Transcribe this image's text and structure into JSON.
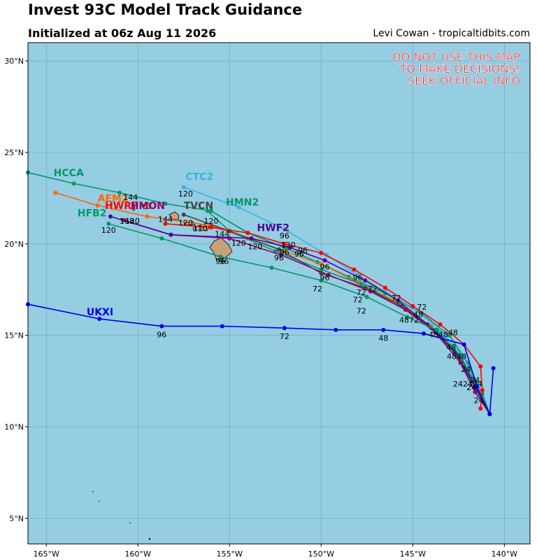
{
  "header": {
    "title": "Invest 93C Model Track Guidance",
    "subtitle": "Initialized at 06z Aug 11 2026",
    "credit": "Levi Cowan - tropicaltidbits.com"
  },
  "warning": [
    "DO NOT USE THIS MAP",
    "TO MAKE DECISIONS!",
    "SEEK OFFICIAL INFO"
  ],
  "colors": {
    "ocean": "#95cde3",
    "land": "#c8a07a",
    "grid": "#5a8aa0",
    "warning": "#ff0000"
  },
  "map_extent": {
    "lon_min": -166,
    "lon_max": -138.6,
    "lat_min": 3.6,
    "lat_max": 31
  },
  "axes": {
    "lon_ticks": [
      {
        "value": -165,
        "label": "165°W"
      },
      {
        "value": -160,
        "label": "160°W"
      },
      {
        "value": -155,
        "label": "155°W"
      },
      {
        "value": -150,
        "label": "150°W"
      },
      {
        "value": -145,
        "label": "145°W"
      },
      {
        "value": -140,
        "label": "140°W"
      }
    ],
    "lat_ticks": [
      {
        "value": 5,
        "label": "5°N"
      },
      {
        "value": 10,
        "label": "10°N"
      },
      {
        "value": 15,
        "label": "15°N"
      },
      {
        "value": 20,
        "label": "20°N"
      },
      {
        "value": 25,
        "label": "25°N"
      },
      {
        "value": 30,
        "label": "30°N"
      }
    ]
  },
  "models": [
    {
      "name": "HCCA",
      "color": "#009966",
      "points": [
        [
          -140.8,
          10.7
        ],
        [
          -141.2,
          11.8
        ],
        [
          -142.0,
          13.5
        ],
        [
          -143.0,
          15.0
        ],
        [
          -144.5,
          16.2
        ],
        [
          -146.5,
          17.3
        ],
        [
          -148.5,
          18.2
        ],
        [
          -150.2,
          19.0
        ],
        [
          -152.0,
          19.8
        ],
        [
          -154.0,
          20.6
        ],
        [
          -156.0,
          21.8
        ],
        [
          -158.5,
          22.2
        ],
        [
          -161.0,
          22.8
        ],
        [
          -163.5,
          23.3
        ],
        [
          -166.0,
          23.9
        ]
      ],
      "label": {
        "lon": -164.6,
        "lat": 23.7
      },
      "hours": [
        {
          "lon": -141.6,
          "lat": 12.4,
          "text": "24"
        },
        {
          "lon": -144.5,
          "lat": 16.4,
          "text": "72"
        }
      ]
    },
    {
      "name": "AEM2",
      "color": "#ff6600",
      "points": [
        [
          -140.8,
          10.7
        ],
        [
          -141.5,
          12.0
        ],
        [
          -142.5,
          13.8
        ],
        [
          -144.0,
          15.5
        ],
        [
          -146.0,
          16.9
        ],
        [
          -148.0,
          17.9
        ],
        [
          -150.0,
          18.9
        ],
        [
          -152.0,
          19.6
        ],
        [
          -154.0,
          20.3
        ],
        [
          -156.0,
          21.0
        ],
        [
          -159.5,
          21.5
        ],
        [
          -162.2,
          22.1
        ],
        [
          -164.5,
          22.8
        ]
      ],
      "label": {
        "lon": -162.2,
        "lat": 22.3
      },
      "hours": [
        {
          "lon": -147.2,
          "lat": 17.4,
          "text": "72"
        }
      ]
    },
    {
      "name": "CTC2",
      "color": "#33b5dd",
      "points": [
        [
          -140.8,
          10.7
        ],
        [
          -141.4,
          12.0
        ],
        [
          -142.2,
          13.8
        ],
        [
          -143.5,
          15.3
        ],
        [
          -145.0,
          16.5
        ],
        [
          -146.5,
          17.4
        ],
        [
          -148.0,
          18.3
        ],
        [
          -149.7,
          19.4
        ],
        [
          -152.0,
          20.8
        ],
        [
          -154.5,
          22.0
        ],
        [
          -157.5,
          23.1
        ]
      ],
      "label": {
        "lon": -157.4,
        "lat": 23.5
      },
      "hours": [
        {
          "lon": -157.4,
          "lat": 22.6,
          "text": "120"
        },
        {
          "lon": -152.0,
          "lat": 20.3,
          "text": "96"
        }
      ]
    },
    {
      "name": "HMN2",
      "color": "#00996e",
      "points": [
        [
          -140.8,
          10.7
        ],
        [
          -141.6,
          12.1
        ],
        [
          -142.6,
          13.9
        ],
        [
          -144.0,
          15.4
        ],
        [
          -145.8,
          16.7
        ],
        [
          -147.8,
          17.8
        ],
        [
          -150.0,
          18.6
        ],
        [
          -152.5,
          19.6
        ],
        [
          -155.0,
          20.7
        ],
        [
          -156.2,
          21.8
        ]
      ],
      "label": {
        "lon": -155.2,
        "lat": 22.1
      },
      "hours": [
        {
          "lon": -156.0,
          "lat": 21.1,
          "text": "120"
        },
        {
          "lon": -149.8,
          "lat": 18.6,
          "text": "96"
        }
      ]
    },
    {
      "name": "TVCN",
      "color": "#444444",
      "points": [
        [
          -140.8,
          10.7
        ],
        [
          -141.5,
          12.0
        ],
        [
          -142.4,
          13.8
        ],
        [
          -143.8,
          15.3
        ],
        [
          -145.6,
          16.6
        ],
        [
          -147.6,
          17.6
        ],
        [
          -150.0,
          18.4
        ],
        [
          -152.3,
          19.7
        ],
        [
          -155.0,
          20.7
        ],
        [
          -157.5,
          21.6
        ]
      ],
      "label": {
        "lon": -157.5,
        "lat": 21.9
      },
      "hours": [
        {
          "lon": -157.4,
          "lat": 21.0,
          "text": "120"
        },
        {
          "lon": -152.3,
          "lat": 19.1,
          "text": "96"
        }
      ]
    },
    {
      "name": "HWRF",
      "color": "#ff0000",
      "points": [
        [
          -141.3,
          11.0
        ],
        [
          -141.2,
          12.0
        ],
        [
          -141.3,
          13.3
        ],
        [
          -142.2,
          14.5
        ],
        [
          -143.5,
          15.6
        ],
        [
          -145.0,
          16.6
        ],
        [
          -146.5,
          17.6
        ],
        [
          -148.2,
          18.6
        ],
        [
          -150.0,
          19.5
        ],
        [
          -152.0,
          20.0
        ],
        [
          -154.0,
          20.6
        ],
        [
          -156.0,
          20.9
        ],
        [
          -158.5,
          21.1
        ]
      ],
      "label": {
        "lon": -161.8,
        "lat": 21.9
      },
      "hours": [
        {
          "lon": -152.0,
          "lat": 19.4,
          "text": "96"
        },
        {
          "lon": -156.6,
          "lat": 20.7,
          "text": "120"
        }
      ]
    },
    {
      "name": "HMON",
      "color": "#990066",
      "points": [
        [
          -140.8,
          10.7
        ],
        [
          -141.6,
          11.9
        ],
        [
          -142.4,
          13.5
        ],
        [
          -143.8,
          15.2
        ],
        [
          -145.4,
          16.4
        ],
        [
          -147.3,
          17.4
        ],
        [
          -149.6,
          18.3
        ],
        [
          -152.2,
          19.4
        ],
        [
          -155.0,
          20.3
        ],
        [
          -158.2,
          20.5
        ],
        [
          -160.8,
          21.3
        ]
      ],
      "label": {
        "lon": -160.4,
        "lat": 21.9
      },
      "hours": [
        {
          "lon": -160.6,
          "lat": 21.1,
          "text": "168"
        }
      ]
    },
    {
      "name": "HWF2",
      "color": "#550099",
      "points": [
        [
          -140.8,
          10.7
        ],
        [
          -141.6,
          12.2
        ],
        [
          -142.7,
          14.1
        ],
        [
          -144.2,
          15.6
        ],
        [
          -145.8,
          16.9
        ],
        [
          -147.6,
          18.0
        ],
        [
          -149.8,
          19.1
        ],
        [
          -151.7,
          19.8
        ],
        [
          -153.8,
          20.3
        ],
        [
          -158.2,
          20.5
        ],
        [
          -161.5,
          21.5
        ]
      ],
      "label": {
        "lon": -153.5,
        "lat": 20.7
      },
      "hours": [
        {
          "lon": -151.0,
          "lat": 19.5,
          "text": "96"
        },
        {
          "lon": -153.6,
          "lat": 19.7,
          "text": "120"
        },
        {
          "lon": -158.5,
          "lat": 21.2,
          "text": "144"
        }
      ]
    },
    {
      "name": "HFB2",
      "color": "#009966",
      "points": [
        [
          -140.8,
          10.7
        ],
        [
          -141.5,
          12.2
        ],
        [
          -142.4,
          13.9
        ],
        [
          -143.7,
          15.3
        ],
        [
          -145.3,
          16.0
        ],
        [
          -147.5,
          17.1
        ],
        [
          -150.0,
          18.0
        ],
        [
          -152.7,
          18.7
        ],
        [
          -155.5,
          19.3
        ],
        [
          -158.7,
          20.3
        ],
        [
          -161.6,
          21.1
        ]
      ],
      "label": {
        "lon": -163.3,
        "lat": 21.5
      },
      "hours": [
        {
          "lon": -161.6,
          "lat": 20.6,
          "text": "120"
        },
        {
          "lon": -155.4,
          "lat": 20.4,
          "text": "144"
        },
        {
          "lon": -155.5,
          "lat": 18.9,
          "text": "96"
        },
        {
          "lon": -148.0,
          "lat": 16.8,
          "text": "72"
        }
      ]
    },
    {
      "name": "UKXI",
      "color": "#0000ee",
      "points": [
        [
          -140.6,
          13.2
        ],
        [
          -140.8,
          10.7
        ],
        [
          -141.5,
          12.2
        ],
        [
          -142.2,
          14.5
        ],
        [
          -144.4,
          15.1
        ],
        [
          -146.6,
          15.3
        ],
        [
          -149.2,
          15.3
        ],
        [
          -152.0,
          15.4
        ],
        [
          -155.4,
          15.5
        ],
        [
          -158.7,
          15.5
        ],
        [
          -162.1,
          15.9
        ],
        [
          -166.0,
          16.7
        ]
      ],
      "label": {
        "lon": -162.8,
        "lat": 16.1
      },
      "hours": [
        {
          "lon": -158.7,
          "lat": 14.9,
          "text": "96"
        },
        {
          "lon": -152.0,
          "lat": 14.8,
          "text": "72"
        },
        {
          "lon": -146.6,
          "lat": 14.7,
          "text": "48"
        }
      ]
    }
  ],
  "extra_hour_labels": [
    {
      "lon": -150.2,
      "lat": 17.4,
      "text": "72"
    },
    {
      "lon": -147.8,
      "lat": 17.2,
      "text": "72"
    },
    {
      "lon": -145.9,
      "lat": 16.9,
      "text": "72"
    },
    {
      "lon": -147.8,
      "lat": 16.2,
      "text": "72"
    },
    {
      "lon": -145.2,
      "lat": 15.7,
      "text": "4872"
    },
    {
      "lon": -144.7,
      "lat": 16.0,
      "text": "48"
    },
    {
      "lon": -143.6,
      "lat": 14.9,
      "text": "4848"
    },
    {
      "lon": -142.8,
      "lat": 15.0,
      "text": "48"
    },
    {
      "lon": -142.9,
      "lat": 14.2,
      "text": "48"
    },
    {
      "lon": -142.6,
      "lat": 13.7,
      "text": "4848"
    },
    {
      "lon": -142.1,
      "lat": 13.0,
      "text": "24"
    },
    {
      "lon": -142.0,
      "lat": 12.2,
      "text": "242424"
    },
    {
      "lon": -141.8,
      "lat": 12.0,
      "text": "24"
    },
    {
      "lon": -141.4,
      "lat": 11.3,
      "text": "24"
    },
    {
      "lon": -149.8,
      "lat": 18.0,
      "text": "96"
    },
    {
      "lon": -151.2,
      "lat": 19.3,
      "text": "96"
    },
    {
      "lon": -155.3,
      "lat": 18.9,
      "text": "96"
    },
    {
      "lon": -148.0,
      "lat": 18.0,
      "text": "96"
    },
    {
      "lon": -160.4,
      "lat": 22.4,
      "text": "144"
    },
    {
      "lon": -160.3,
      "lat": 21.1,
      "text": "120"
    },
    {
      "lon": -151.8,
      "lat": 19.8,
      "text": "120"
    },
    {
      "lon": -154.5,
      "lat": 19.9,
      "text": "120"
    }
  ]
}
